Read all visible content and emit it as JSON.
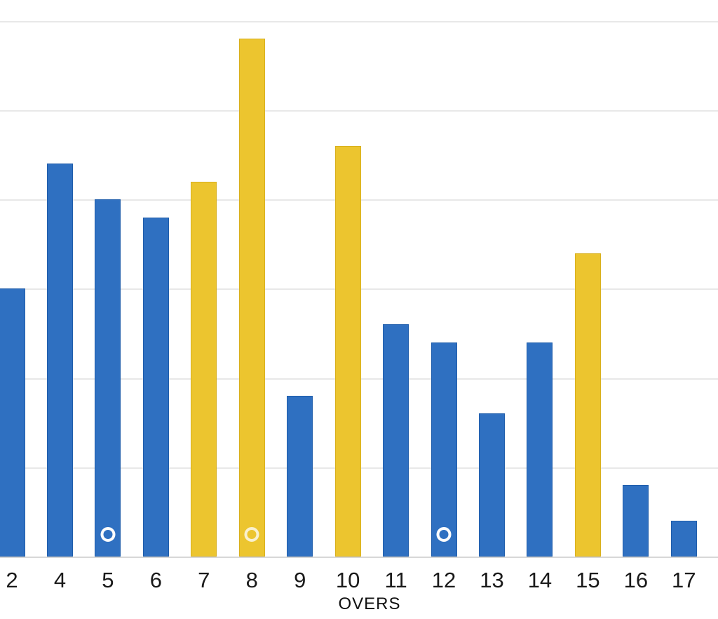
{
  "chart_data": {
    "type": "bar",
    "title": "",
    "xlabel": "OVERS",
    "ylabel": "",
    "ylim": [
      0,
      30
    ],
    "gridline_interval_runs": 5,
    "y_axis_labels_visible": false,
    "grid": "horizontal",
    "legend": "none",
    "categories": [
      "2",
      "4",
      "5",
      "6",
      "7",
      "8",
      "9",
      "10",
      "11",
      "12",
      "13",
      "14",
      "15",
      "16",
      "17"
    ],
    "values": [
      15,
      22,
      20,
      19,
      21,
      29,
      9,
      23,
      13,
      12,
      8,
      12,
      17,
      4,
      2
    ],
    "bars": [
      {
        "over": "2",
        "runs": 15,
        "color": "blue",
        "wicket": false
      },
      {
        "over": "4",
        "runs": 22,
        "color": "blue",
        "wicket": false
      },
      {
        "over": "5",
        "runs": 20,
        "color": "blue",
        "wicket": true
      },
      {
        "over": "6",
        "runs": 19,
        "color": "blue",
        "wicket": false
      },
      {
        "over": "7",
        "runs": 21,
        "color": "yellow",
        "wicket": false
      },
      {
        "over": "8",
        "runs": 29,
        "color": "yellow",
        "wicket": true
      },
      {
        "over": "9",
        "runs": 9,
        "color": "blue",
        "wicket": false
      },
      {
        "over": "10",
        "runs": 23,
        "color": "yellow",
        "wicket": false
      },
      {
        "over": "11",
        "runs": 13,
        "color": "blue",
        "wicket": false
      },
      {
        "over": "12",
        "runs": 12,
        "color": "blue",
        "wicket": true
      },
      {
        "over": "13",
        "runs": 8,
        "color": "blue",
        "wicket": false
      },
      {
        "over": "14",
        "runs": 12,
        "color": "blue",
        "wicket": false
      },
      {
        "over": "15",
        "runs": 17,
        "color": "yellow",
        "wicket": false
      },
      {
        "over": "16",
        "runs": 4,
        "color": "blue",
        "wicket": false
      },
      {
        "over": "17",
        "runs": 2,
        "color": "blue",
        "wicket": false
      }
    ],
    "wicket_marker_overs": [
      "5",
      "8",
      "12"
    ],
    "colors": {
      "bar_blue": "#2F70C1",
      "bar_yellow": "#ECC52F",
      "wicket_ring_on_blue": "#FDFDFD",
      "wicket_ring_on_yellow": "#F9F1CE",
      "gridline": "#E8E8E8",
      "axis_line": "#D7D7D7",
      "tick_label": "#1A1A1A"
    }
  }
}
